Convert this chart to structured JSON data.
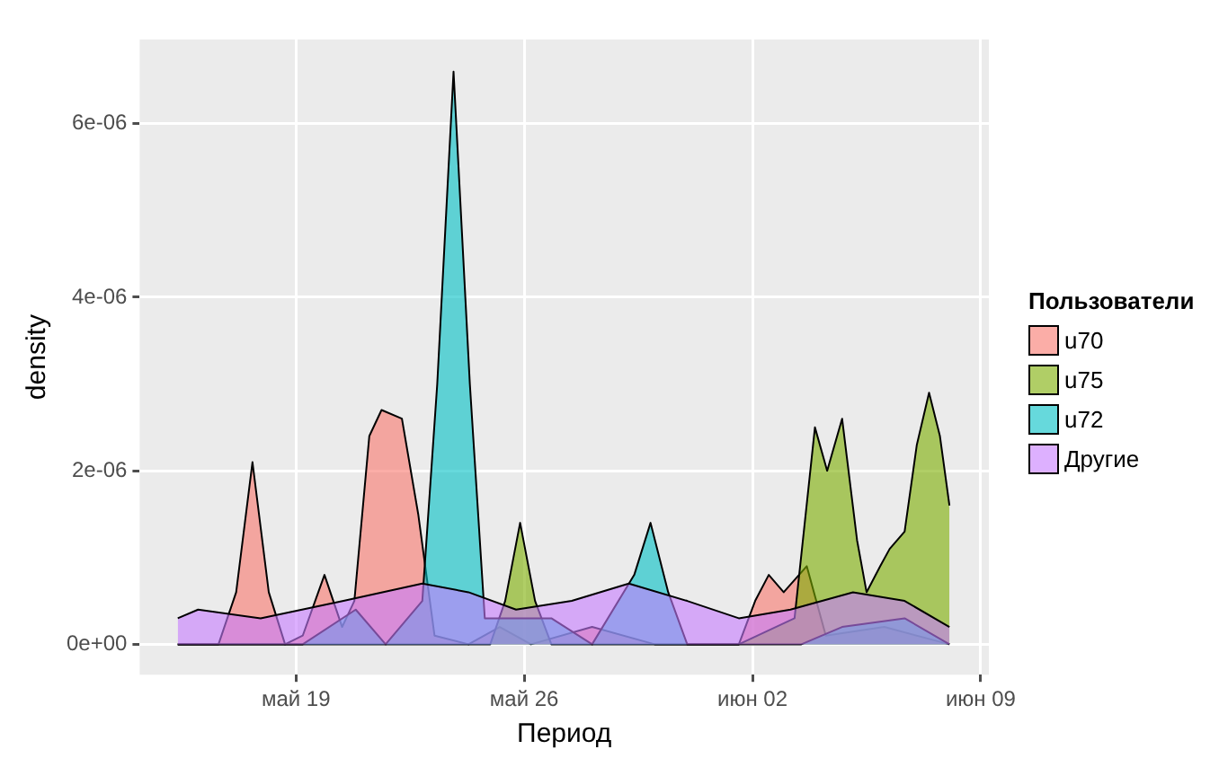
{
  "chart_data": {
    "type": "area",
    "xlabel": "Период",
    "ylabel": "density",
    "legend_title": "Пользователи",
    "legend": "right",
    "grid": true,
    "xlim": [
      "--05-14T05:00",
      "--06-09T06:00"
    ],
    "xticks": [
      {
        "value": "--05-19",
        "label": "май 19"
      },
      {
        "value": "--05-26",
        "label": "май 26"
      },
      {
        "value": "--06-02",
        "label": "июн 02"
      },
      {
        "value": "--06-09",
        "label": "июн 09"
      }
    ],
    "ylim": [
      -3.5e-07,
      6.97e-06
    ],
    "yticks": [
      {
        "value": 0,
        "label": "0e+00"
      },
      {
        "value": 2e-06,
        "label": "2e-06"
      },
      {
        "value": 4e-06,
        "label": "4e-06"
      },
      {
        "value": 6e-06,
        "label": "6e-06"
      }
    ],
    "series": [
      {
        "name": "u70",
        "color": "#f8766d",
        "x": [
          "--05-15T09:00",
          "--05-16T15:00",
          "--05-17T04:00",
          "--05-17T16:00",
          "--05-18T04:00",
          "--05-18T16:00",
          "--05-19T05:00",
          "--05-19T21:00",
          "--05-20T10:00",
          "--05-20T19:00",
          "--05-21T06:00",
          "--05-21T15:00",
          "--05-22T06:00",
          "--05-22T18:00",
          "--05-23T06:00",
          "--05-24T07:00",
          "--05-25T06:00",
          "--05-26T05:00",
          "--05-28T02:00",
          "--05-30T00:00",
          "--06-01T14:00",
          "--06-02T02:00",
          "--06-02T12:00",
          "--06-02T23:00",
          "--06-03T16:00",
          "--06-04T06:00",
          "--06-06T01:00",
          "--06-08T01:00"
        ],
        "values": [
          0,
          0,
          6e-07,
          2.1e-06,
          6e-07,
          0,
          1e-07,
          8e-07,
          2e-07,
          5e-07,
          2.4e-06,
          2.7e-06,
          2.6e-06,
          1.5e-06,
          1e-07,
          0,
          2e-07,
          0,
          2e-07,
          0,
          0,
          5e-07,
          8e-07,
          6e-07,
          9e-07,
          1e-07,
          2e-07,
          0
        ]
      },
      {
        "name": "u75",
        "color": "#7cae00",
        "x": [
          "--05-15T09:00",
          "--05-24T23:00",
          "--05-25T10:00",
          "--05-25T21:00",
          "--05-26T08:00",
          "--05-26T20:00",
          "--06-01T14:00",
          "--06-03T07:00",
          "--06-03T22:00",
          "--06-04T07:00",
          "--06-04T18:00",
          "--06-05T05:00",
          "--06-05T12:00",
          "--06-05T22:00",
          "--06-06T05:00",
          "--06-06T16:00",
          "--06-07T01:00",
          "--06-07T10:00",
          "--06-07T18:00",
          "--06-08T01:00"
        ],
        "values": [
          0,
          0,
          5e-07,
          1.4e-06,
          5e-07,
          0,
          0,
          3e-07,
          2.5e-06,
          2e-06,
          2.6e-06,
          1.2e-06,
          6e-07,
          9e-07,
          1.1e-06,
          1.3e-06,
          2.3e-06,
          2.9e-06,
          2.4e-06,
          1.6e-06
        ]
      },
      {
        "name": "u72",
        "color": "#00bfc4",
        "x": [
          "--05-15T09:00",
          "--05-19T05:00",
          "--05-20T20:00",
          "--05-21T18:00",
          "--05-22T21:00",
          "--05-23T08:00",
          "--05-23T20:00",
          "--05-24T08:00",
          "--05-24T19:00",
          "--05-26T20:00",
          "--05-28T02:00",
          "--05-29T09:00",
          "--05-29T21:00",
          "--05-30T10:00",
          "--05-31T00:00",
          "--06-03T12:00",
          "--06-04T18:00",
          "--06-06T16:00",
          "--06-08T01:00"
        ],
        "values": [
          0,
          0,
          4e-07,
          0,
          5e-07,
          3e-06,
          6.6e-06,
          3e-06,
          3e-07,
          3e-07,
          0,
          8e-07,
          1.4e-06,
          6e-07,
          0,
          0,
          2e-07,
          3e-07,
          0
        ]
      },
      {
        "name": "Другие",
        "color": "#c77cff",
        "x": [
          "--05-15T09:00",
          "--05-16T00:00",
          "--05-17T22:00",
          "--05-20T11:00",
          "--05-22T21:00",
          "--05-24T07:00",
          "--05-25T18:00",
          "--05-27T11:00",
          "--05-29T05:00",
          "--05-31T00:00",
          "--06-01T14:00",
          "--06-03T04:00",
          "--06-05T02:00",
          "--06-06T16:00",
          "--06-08T01:00"
        ],
        "values": [
          3e-07,
          4e-07,
          3e-07,
          5e-07,
          7e-07,
          6e-07,
          4e-07,
          5e-07,
          7e-07,
          5e-07,
          3e-07,
          4e-07,
          6e-07,
          5e-07,
          2e-07
        ]
      }
    ]
  }
}
